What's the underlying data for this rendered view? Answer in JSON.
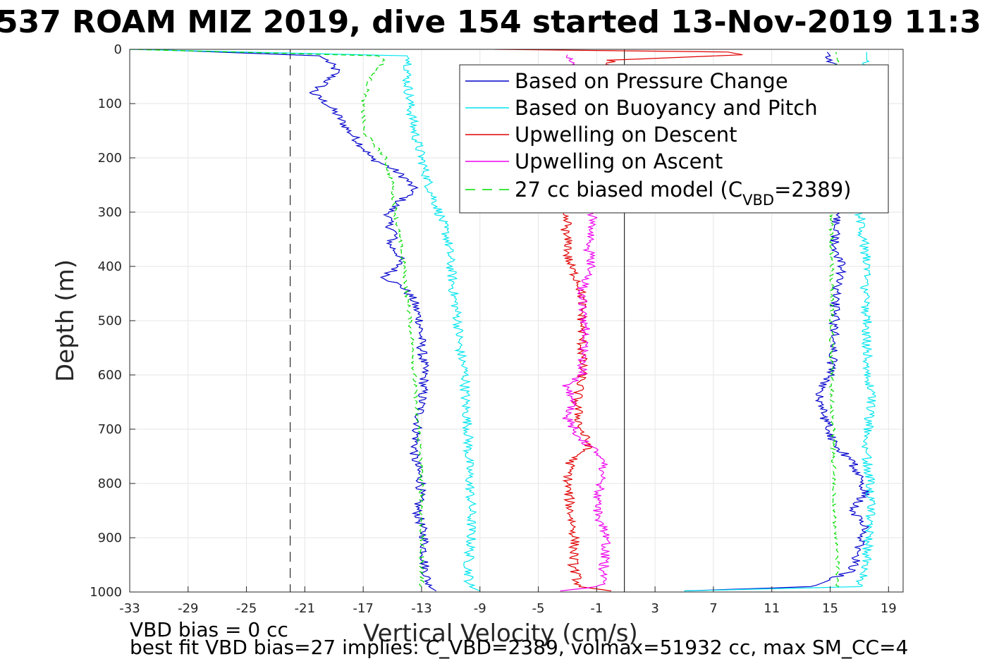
{
  "chart_data": {
    "type": "line",
    "title": "537 ROAM MIZ 2019, dive 154 started 13-Nov-2019 11:3",
    "xlabel": "Vertical Velocity (cm/s)",
    "ylabel": "Depth (m)",
    "xlim": [
      -33,
      20
    ],
    "ylim": [
      1000,
      0
    ],
    "y_reversed": true,
    "grid": true,
    "x_ticks": [
      -33,
      -29,
      -25,
      -21,
      -17,
      -13,
      -9,
      -5,
      -1,
      3,
      7,
      11,
      15,
      19
    ],
    "y_ticks": [
      0,
      100,
      200,
      300,
      400,
      500,
      600,
      700,
      800,
      900,
      1000
    ],
    "legend_position": "top-right",
    "legend": [
      {
        "label": "Based on Pressure Change",
        "color": "#0000cc",
        "style": "solid"
      },
      {
        "label": "Based on Buoyancy and Pitch",
        "color": "#00e5ee",
        "style": "solid"
      },
      {
        "label": "Upwelling on Descent",
        "color": "#e00000",
        "style": "solid"
      },
      {
        "label": "Upwelling on Ascent",
        "color": "#ee00ee",
        "style": "solid"
      },
      {
        "label_main": "27 cc biased model (C",
        "label_sub": "VBD",
        "label_tail": "=2389)",
        "color": "#00dd00",
        "style": "dashed"
      }
    ],
    "reference_lines": [
      {
        "axis": "x",
        "value": -22,
        "style": "dashed",
        "color": "#000000"
      },
      {
        "axis": "x",
        "value": 0.9,
        "style": "solid",
        "color": "#000000"
      }
    ],
    "series": [
      {
        "key": "pressure_descent",
        "color": "#0000cc",
        "depth": [
          0,
          12,
          20,
          40,
          60,
          80,
          100,
          120,
          150,
          180,
          200,
          220,
          240,
          260,
          280,
          300,
          320,
          340,
          360,
          380,
          400,
          420,
          440,
          460,
          500,
          550,
          600,
          650,
          700,
          750,
          800,
          850,
          900,
          950,
          990,
          998
        ],
        "velocity": [
          -32,
          -20,
          -19.5,
          -18.8,
          -19.5,
          -20.5,
          -19.5,
          -18.8,
          -18,
          -17,
          -16.5,
          -15,
          -14,
          -13.5,
          -14.5,
          -15.2,
          -15.3,
          -14.8,
          -15.2,
          -14.5,
          -14.6,
          -15.5,
          -14.2,
          -13.6,
          -13.1,
          -13,
          -12.8,
          -13,
          -13.3,
          -13.5,
          -13,
          -13.3,
          -12.8,
          -12.8,
          -12.5,
          -12
        ]
      },
      {
        "key": "pressure_ascent",
        "color": "#0000cc",
        "depth": [
          998,
          990,
          960,
          920,
          880,
          850,
          820,
          790,
          760,
          740,
          720,
          700,
          680,
          650,
          630,
          600,
          560,
          520,
          480,
          440,
          400,
          360,
          320,
          300,
          250,
          200,
          150,
          100,
          60,
          30,
          12,
          5
        ],
        "velocity": [
          5,
          14,
          16.5,
          17,
          17.3,
          16.5,
          17.4,
          17,
          16.5,
          15.8,
          15.2,
          15,
          14.6,
          14.4,
          14.2,
          15,
          15.2,
          15.3,
          15.3,
          15.4,
          15.8,
          15.3,
          15.4,
          15.4,
          15.4,
          15.4,
          15.4,
          15.4,
          15.4,
          15.2,
          15,
          14.8
        ]
      },
      {
        "key": "buoyancy_descent",
        "color": "#00e5ee",
        "depth": [
          0,
          12,
          20,
          50,
          100,
          150,
          200,
          250,
          300,
          350,
          400,
          450,
          500,
          550,
          600,
          650,
          700,
          750,
          800,
          850,
          900,
          950,
          990,
          998
        ],
        "velocity": [
          -33,
          -14,
          -13.8,
          -14,
          -13.8,
          -13.5,
          -13,
          -12.5,
          -11.8,
          -11.2,
          -11,
          -10.8,
          -10.5,
          -10.4,
          -10,
          -10,
          -9.8,
          -9.8,
          -9.7,
          -9.6,
          -9.6,
          -9.8,
          -9.7,
          -9
        ]
      },
      {
        "key": "buoyancy_ascent",
        "color": "#00e5ee",
        "depth": [
          998,
          990,
          950,
          900,
          850,
          800,
          750,
          700,
          650,
          600,
          550,
          500,
          450,
          400,
          350,
          300,
          250,
          200,
          100,
          50,
          20,
          5
        ],
        "velocity": [
          5,
          17,
          17.5,
          17.6,
          17.8,
          17.8,
          17.5,
          17.6,
          17.8,
          17.6,
          17.5,
          17.5,
          17.4,
          17.5,
          17.3,
          17,
          17,
          17,
          17,
          17,
          17.5,
          17.5
        ]
      },
      {
        "key": "model_descent",
        "color": "#00dd00",
        "dashed": true,
        "depth": [
          0,
          12,
          20,
          50,
          100,
          150,
          200,
          250,
          300,
          350,
          400,
          450,
          500,
          550,
          600,
          650,
          700,
          750,
          800,
          850,
          900,
          950,
          990
        ],
        "velocity": [
          -33,
          -16,
          -15.5,
          -16.5,
          -17,
          -17,
          -15.5,
          -15,
          -14.8,
          -14.5,
          -14.2,
          -14,
          -13.8,
          -13.6,
          -13.5,
          -13.4,
          -13.2,
          -13.1,
          -13,
          -13,
          -13,
          -13,
          -13
        ]
      },
      {
        "key": "model_ascent",
        "color": "#00dd00",
        "dashed": true,
        "depth": [
          990,
          950,
          900,
          850,
          800,
          750,
          700,
          650,
          600,
          550,
          500,
          450,
          400,
          350,
          300,
          250,
          200,
          100,
          50,
          20,
          5
        ],
        "velocity": [
          15.5,
          15.5,
          15.4,
          15.3,
          15.3,
          15.2,
          15.2,
          15.1,
          15.1,
          15.1,
          15.1,
          15.1,
          15.1,
          15.1,
          15.1,
          15.1,
          15.1,
          15.1,
          15.2,
          15.5,
          15.4
        ]
      },
      {
        "key": "upwelling_descent",
        "color": "#e00000",
        "depth": [
          0,
          5,
          10,
          20,
          300,
          320,
          340,
          360,
          380,
          400,
          430,
          460,
          500,
          550,
          600,
          650,
          700,
          730,
          760,
          800,
          850,
          900,
          950,
          990,
          998
        ],
        "velocity": [
          -8,
          8,
          9,
          0,
          -3.5,
          -3,
          -3.2,
          -2.9,
          -3,
          -2.8,
          -2.2,
          -2,
          -2,
          -2,
          -2,
          -2.4,
          -2.1,
          -1.5,
          -2.8,
          -3,
          -2.8,
          -2.5,
          -2.6,
          -2.2,
          0
        ]
      },
      {
        "key": "upwelling_ascent",
        "color": "#ee00ee",
        "depth": [
          998,
          990,
          960,
          900,
          850,
          800,
          760,
          740,
          720,
          700,
          680,
          650,
          620,
          600,
          560,
          520,
          480,
          440,
          400,
          360,
          320,
          300,
          200,
          100,
          50,
          10
        ],
        "velocity": [
          -3.5,
          -0.8,
          -0.5,
          -0.4,
          -1,
          -0.8,
          -0.5,
          -1,
          -2,
          -2.5,
          -3,
          -2.5,
          -3,
          -2,
          -2,
          -1.8,
          -1.9,
          -2,
          -1.3,
          -1.6,
          -1.4,
          -1.2,
          -3,
          -2,
          -1.5,
          -3
        ]
      }
    ]
  },
  "annotations": {
    "line1": "VBD bias = 0 cc",
    "line2": "best fit VBD bias=27 implies: C_VBD=2389, volmax=51932 cc, max SM_CC=4"
  }
}
